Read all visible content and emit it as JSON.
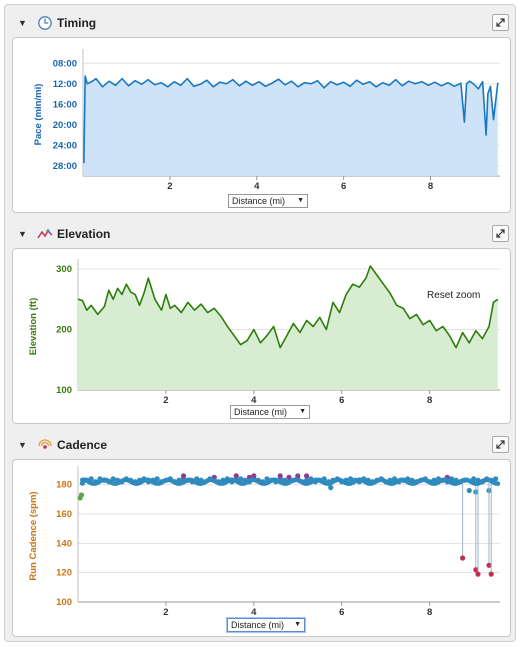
{
  "colors": {
    "timing_line": "#1a78c2",
    "timing_fill": "#cfe3f8",
    "elevation_line": "#2d7d0b",
    "elevation_fill": "#d7ecd0",
    "cadence_dot": "#2f8bbd",
    "cadence_purple": "#8a3f91",
    "cadence_red": "#c0324b",
    "cadence_green": "#5aa84a",
    "timing_axis_text": "#1a64b0",
    "elevation_axis_text": "#3a7a10",
    "cadence_axis_text": "#c87515"
  },
  "sections": {
    "timing": {
      "title": "Timing",
      "icon": "clock-icon",
      "toggle": "▼",
      "expand_icon": "expand-icon"
    },
    "elevation": {
      "title": "Elevation",
      "icon": "elevation-icon",
      "toggle": "▼",
      "expand_icon": "expand-icon"
    },
    "cadence": {
      "title": "Cadence",
      "icon": "cadence-icon",
      "toggle": "▼",
      "expand_icon": "expand-icon"
    }
  },
  "distance_selector": {
    "label": "Distance (mi)",
    "arrow": "▼"
  },
  "reset_zoom": "Reset zoom",
  "chart_data": [
    {
      "type": "area",
      "title": "",
      "xlabel": "",
      "ylabel": "Pace (min/mi)",
      "y_reversed": true,
      "ylim": [
        30,
        6
      ],
      "xlim": [
        0,
        9.6
      ],
      "y_ticks": [
        "08:00",
        "12:00",
        "16:00",
        "20:00",
        "24:00",
        "28:00"
      ],
      "y_tick_values": [
        8,
        12,
        16,
        20,
        24,
        28
      ],
      "x_ticks": [
        "2",
        "4",
        "6",
        "8"
      ],
      "x_tick_values": [
        2,
        4,
        6,
        8
      ],
      "grid": "horizontal",
      "x": [
        0.02,
        0.05,
        0.1,
        0.2,
        0.3,
        0.45,
        0.6,
        0.75,
        0.9,
        1.05,
        1.2,
        1.35,
        1.5,
        1.65,
        1.8,
        1.95,
        2.1,
        2.25,
        2.4,
        2.55,
        2.7,
        2.85,
        3.0,
        3.15,
        3.3,
        3.45,
        3.6,
        3.75,
        3.9,
        4.05,
        4.2,
        4.35,
        4.5,
        4.65,
        4.8,
        4.95,
        5.1,
        5.25,
        5.4,
        5.55,
        5.7,
        5.85,
        6.0,
        6.15,
        6.3,
        6.45,
        6.6,
        6.75,
        6.9,
        7.05,
        7.2,
        7.35,
        7.5,
        7.65,
        7.8,
        7.95,
        8.1,
        8.25,
        8.4,
        8.55,
        8.7,
        8.78,
        8.83,
        8.9,
        9.0,
        9.1,
        9.2,
        9.28,
        9.32,
        9.38,
        9.45,
        9.55
      ],
      "values": [
        27.5,
        10.5,
        12.0,
        11.6,
        11.0,
        12.6,
        11.5,
        12.3,
        11.0,
        12.4,
        11.4,
        12.1,
        11.2,
        12.2,
        11.8,
        12.6,
        11.6,
        12.3,
        11.0,
        12.5,
        12.1,
        11.3,
        12.6,
        11.7,
        12.0,
        11.2,
        12.4,
        11.5,
        12.3,
        11.6,
        12.5,
        11.9,
        11.1,
        12.2,
        11.5,
        12.6,
        11.8,
        12.0,
        11.4,
        12.8,
        11.6,
        12.2,
        11.7,
        12.5,
        11.3,
        12.1,
        11.6,
        12.6,
        11.8,
        12.3,
        11.2,
        12.4,
        11.5,
        12.0,
        11.6,
        12.3,
        11.7,
        12.4,
        11.8,
        12.5,
        11.9,
        19.5,
        12.0,
        11.5,
        12.1,
        13.0,
        11.6,
        22.0,
        14.0,
        12.5,
        19.0,
        11.8
      ]
    },
    {
      "type": "area",
      "title": "",
      "xlabel": "",
      "ylabel": "Elevation (ft)",
      "ylim": [
        100,
        310
      ],
      "xlim": [
        0,
        9.6
      ],
      "y_ticks": [
        "100",
        "200",
        "300"
      ],
      "y_tick_values": [
        100,
        200,
        300
      ],
      "x_ticks": [
        "2",
        "4",
        "6",
        "8"
      ],
      "x_tick_values": [
        2,
        4,
        6,
        8
      ],
      "grid": "horizontal",
      "x": [
        0.0,
        0.1,
        0.2,
        0.3,
        0.45,
        0.6,
        0.7,
        0.8,
        0.9,
        1.0,
        1.1,
        1.2,
        1.3,
        1.4,
        1.5,
        1.6,
        1.75,
        1.9,
        2.0,
        2.1,
        2.2,
        2.35,
        2.5,
        2.65,
        2.8,
        2.95,
        3.1,
        3.25,
        3.4,
        3.55,
        3.7,
        3.85,
        4.0,
        4.15,
        4.3,
        4.45,
        4.6,
        4.75,
        4.9,
        5.05,
        5.2,
        5.35,
        5.5,
        5.65,
        5.8,
        5.95,
        6.1,
        6.25,
        6.4,
        6.55,
        6.65,
        6.8,
        6.95,
        7.1,
        7.25,
        7.4,
        7.55,
        7.7,
        7.85,
        8.0,
        8.15,
        8.3,
        8.45,
        8.6,
        8.75,
        8.9,
        9.05,
        9.2,
        9.35,
        9.45,
        9.55
      ],
      "values": [
        250,
        248,
        232,
        240,
        225,
        238,
        265,
        250,
        268,
        258,
        275,
        262,
        258,
        240,
        260,
        285,
        250,
        232,
        258,
        235,
        240,
        228,
        245,
        232,
        242,
        228,
        235,
        222,
        205,
        190,
        175,
        182,
        200,
        178,
        190,
        205,
        170,
        190,
        210,
        195,
        215,
        205,
        220,
        200,
        245,
        228,
        258,
        275,
        270,
        285,
        305,
        290,
        275,
        260,
        240,
        235,
        218,
        225,
        208,
        215,
        198,
        205,
        190,
        170,
        195,
        178,
        198,
        185,
        205,
        245,
        250
      ]
    },
    {
      "type": "scatter",
      "title": "",
      "xlabel": "",
      "ylabel": "Run Cadence (spm)",
      "ylim": [
        100,
        190
      ],
      "xlim": [
        0,
        9.6
      ],
      "y_ticks": [
        "100",
        "120",
        "140",
        "160",
        "180"
      ],
      "y_tick_values": [
        100,
        120,
        140,
        160,
        180
      ],
      "x_ticks": [
        "2",
        "4",
        "6",
        "8"
      ],
      "x_tick_values": [
        2,
        4,
        6,
        8
      ],
      "grid": "horizontal",
      "series": [
        {
          "color": "#2f8bbd",
          "x": [
            0.1,
            0.2,
            0.3,
            0.4,
            0.5,
            0.6,
            0.7,
            0.8,
            0.9,
            1.0,
            1.1,
            1.2,
            1.3,
            1.4,
            1.5,
            1.6,
            1.7,
            1.8,
            1.9,
            2.0,
            2.1,
            2.2,
            2.3,
            2.4,
            2.5,
            2.6,
            2.7,
            2.8,
            2.9,
            3.0,
            3.1,
            3.2,
            3.3,
            3.4,
            3.5,
            3.6,
            3.7,
            3.8,
            3.9,
            4.0,
            4.1,
            4.2,
            4.3,
            4.4,
            4.5,
            4.6,
            4.7,
            4.8,
            4.9,
            5.0,
            5.1,
            5.2,
            5.3,
            5.4,
            5.5,
            5.6,
            5.7,
            5.75,
            5.8,
            5.9,
            6.0,
            6.1,
            6.2,
            6.3,
            6.4,
            6.5,
            6.6,
            6.7,
            6.8,
            6.9,
            7.0,
            7.1,
            7.2,
            7.3,
            7.4,
            7.5,
            7.6,
            7.7,
            7.8,
            7.9,
            8.0,
            8.1,
            8.2,
            8.3,
            8.4,
            8.5,
            8.6,
            8.7,
            8.8,
            8.9,
            9.0,
            9.05,
            9.1,
            9.2,
            9.3,
            9.35,
            9.4,
            9.5
          ],
          "values": [
            181,
            183,
            184,
            182,
            184,
            183,
            182,
            184,
            183,
            182,
            184,
            183,
            182,
            183,
            184,
            182,
            183,
            184,
            182,
            183,
            184,
            182,
            183,
            184,
            183,
            182,
            184,
            183,
            182,
            184,
            183,
            182,
            183,
            184,
            182,
            183,
            184,
            183,
            182,
            184,
            183,
            182,
            184,
            183,
            182,
            184,
            183,
            182,
            183,
            184,
            182,
            183,
            184,
            182,
            183,
            184,
            182,
            178,
            183,
            184,
            182,
            183,
            184,
            183,
            182,
            184,
            183,
            182,
            183,
            184,
            182,
            183,
            184,
            182,
            183,
            184,
            183,
            182,
            183,
            184,
            182,
            183,
            184,
            183,
            182,
            184,
            183,
            182,
            183,
            176,
            184,
            175,
            183,
            182,
            184,
            176,
            183,
            184
          ]
        },
        {
          "color": "#8a3f91",
          "x": [
            2.4,
            3.1,
            3.6,
            3.9,
            4.0,
            4.6,
            4.8,
            5.0,
            5.2,
            8.4
          ],
          "values": [
            186,
            185,
            186,
            185,
            186,
            186,
            185,
            186,
            186,
            185
          ]
        },
        {
          "color": "#c0324b",
          "x": [
            8.75,
            9.05,
            9.1,
            9.35,
            9.4
          ],
          "values": [
            130,
            122,
            119,
            125,
            119
          ]
        },
        {
          "color": "#5aa84a",
          "x": [
            0.05,
            0.08
          ],
          "values": [
            171,
            173
          ]
        }
      ]
    }
  ]
}
